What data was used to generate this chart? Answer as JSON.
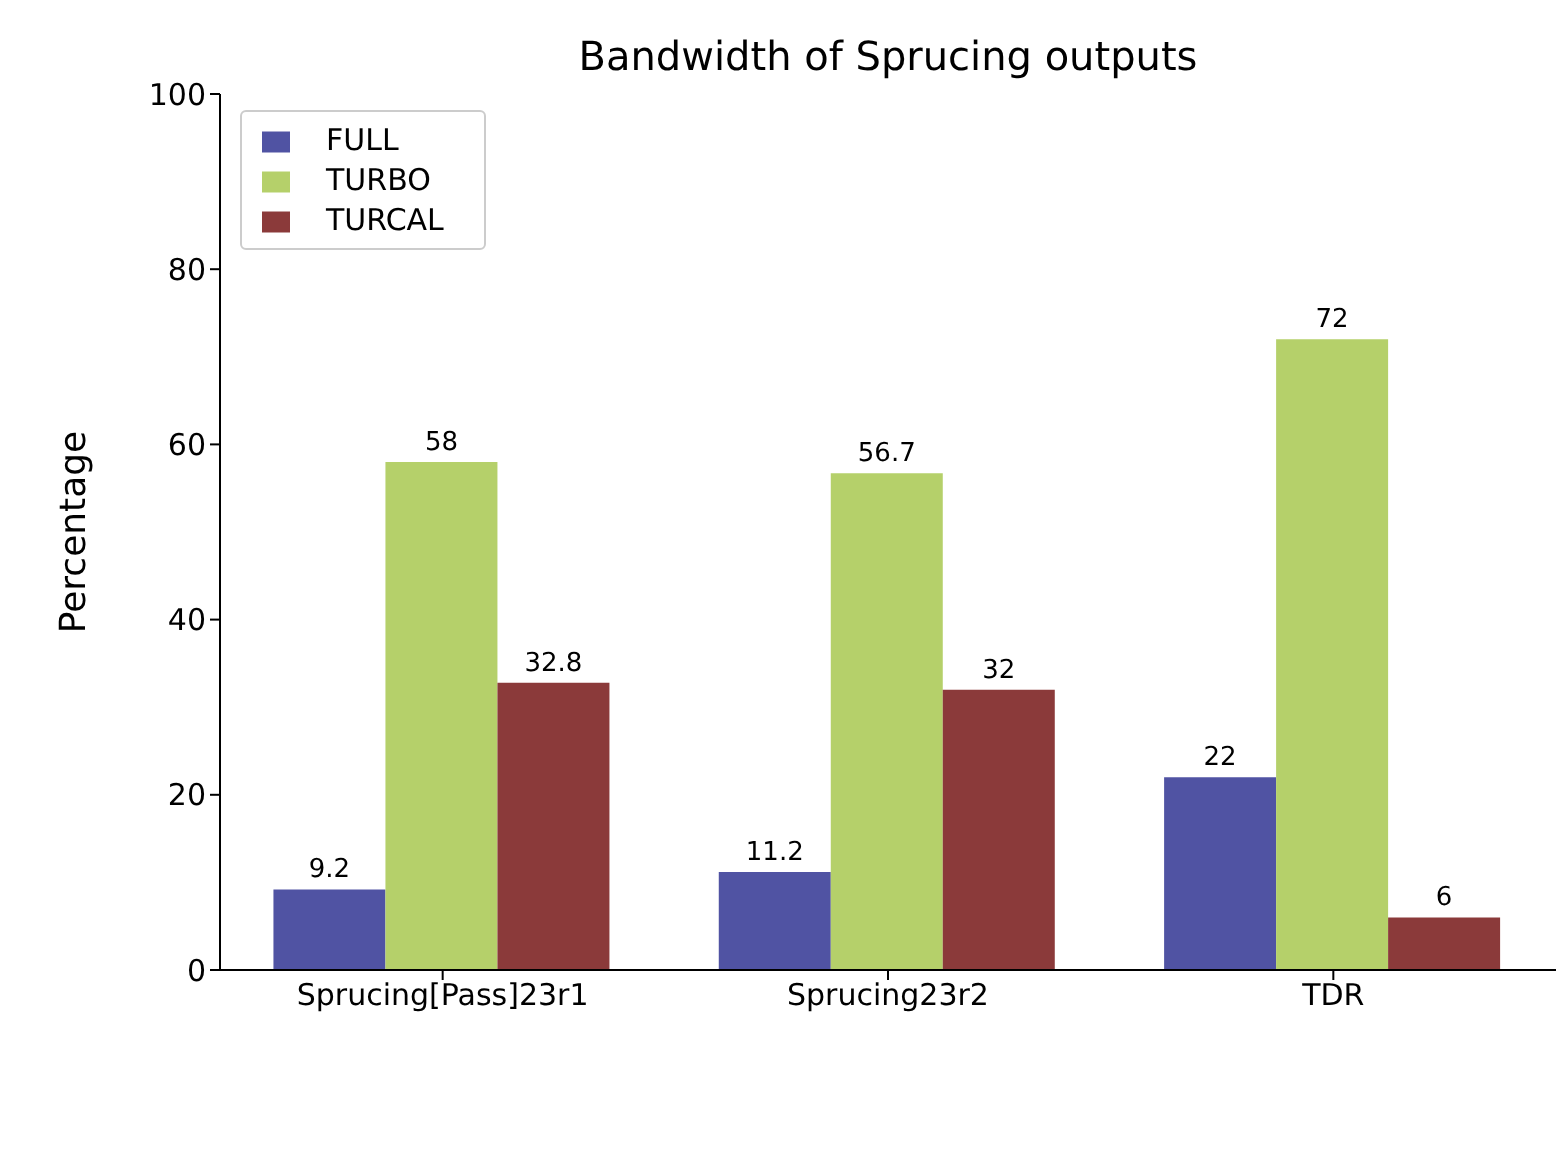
{
  "chart_data": {
    "type": "bar",
    "title": "Bandwidth of Sprucing outputs",
    "ylabel": "Percentage",
    "categories": [
      "Sprucing[Pass]23r1",
      "Sprucing23r2",
      "TDR"
    ],
    "series": [
      {
        "name": "FULL",
        "color": "#5053a3",
        "values": [
          9.2,
          11.2,
          22
        ]
      },
      {
        "name": "TURBO",
        "color": "#b5d06a",
        "values": [
          58,
          56.7,
          72
        ]
      },
      {
        "name": "TURCAL",
        "color": "#8b3a3a",
        "values": [
          32.8,
          32,
          6
        ]
      }
    ],
    "ylim": [
      0,
      100
    ],
    "yticks": [
      0,
      20,
      40,
      60,
      80,
      100
    ],
    "data_labels": true,
    "legend": "top left",
    "grid": false
  }
}
